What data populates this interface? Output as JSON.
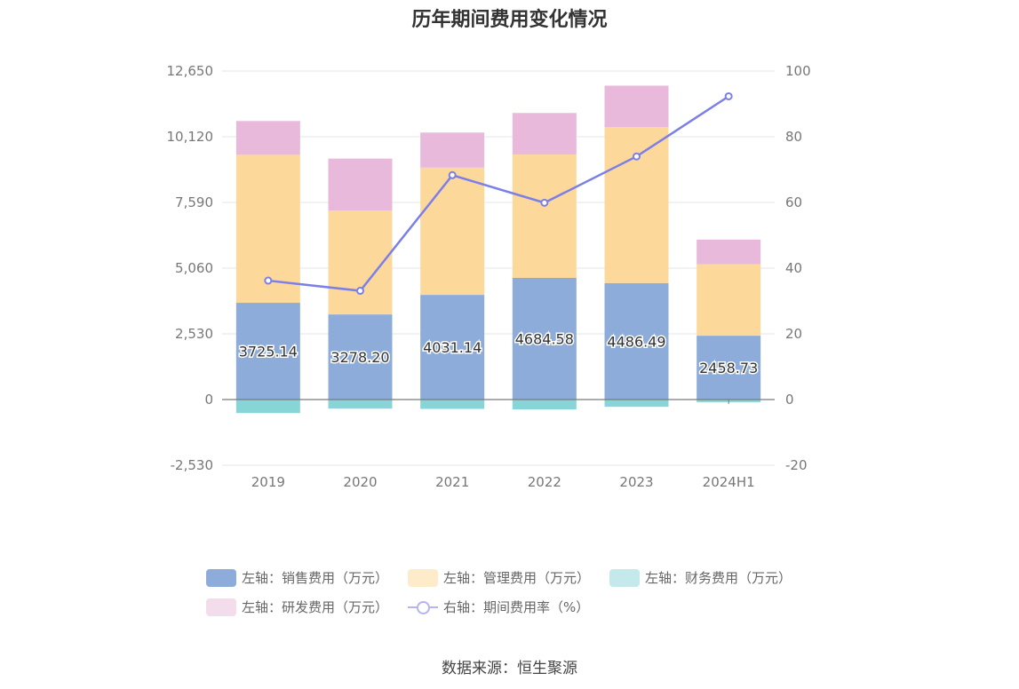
{
  "chart_data": {
    "type": "bar",
    "title": "历年期间费用变化情况",
    "categories": [
      "2019",
      "2020",
      "2021",
      "2022",
      "2023",
      "2024H1"
    ],
    "left_axis": {
      "ticks": [
        "-2,530",
        "0",
        "2,530",
        "5,060",
        "7,590",
        "10,120",
        "12,650"
      ],
      "ylim": [
        -2530,
        12650
      ]
    },
    "right_axis": {
      "ticks": [
        "-20",
        "0",
        "20",
        "40",
        "60",
        "80",
        "100"
      ],
      "ylim": [
        -20,
        100
      ]
    },
    "series": [
      {
        "name": "左轴：销售费用（万元）",
        "axis": "left",
        "stack": "total",
        "color": "#8eacd9",
        "values": [
          3725.14,
          3278.2,
          4031.14,
          4684.58,
          4486.49,
          2458.73
        ],
        "labels": [
          "3725.14",
          "3278.20",
          "4031.14",
          "4684.58",
          "4486.49",
          "2458.73"
        ]
      },
      {
        "name": "左轴：管理费用（万元）",
        "axis": "left",
        "stack": "total",
        "color": "#fdd89b",
        "values": [
          5700,
          4000,
          4900,
          4750,
          6000,
          2750
        ]
      },
      {
        "name": "左轴：财务费用（万元）",
        "axis": "left",
        "stack": "total",
        "color": "#88d5d8",
        "values": [
          -520,
          -350,
          -360,
          -380,
          -280,
          -100
        ]
      },
      {
        "name": "左轴：研发费用（万元）",
        "axis": "left",
        "stack": "total",
        "color": "#e8b9db",
        "values": [
          1300,
          2000,
          1350,
          1600,
          1600,
          950
        ]
      },
      {
        "name": "右轴：期间费用率（%）",
        "axis": "right",
        "type": "line",
        "color": "#7b7fe8",
        "values": [
          36.2,
          33.1,
          68.3,
          59.9,
          74.0,
          92.3
        ]
      }
    ]
  },
  "source": "数据来源：恒生聚源"
}
